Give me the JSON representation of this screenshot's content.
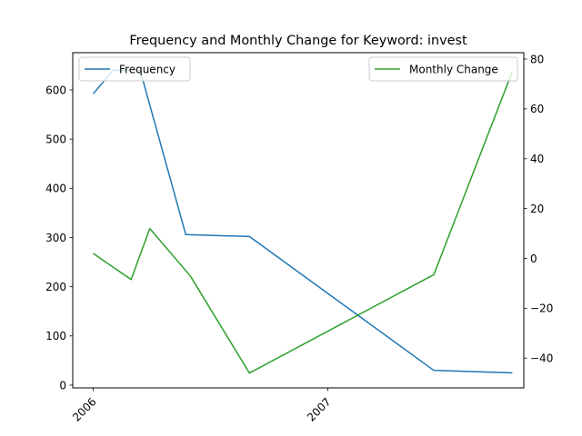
{
  "chart_data": {
    "type": "line",
    "title": "Frequency and Monthly Change for Keyword: invest",
    "x_ticks": [
      "2006",
      "2007"
    ],
    "y_left": {
      "ylim": [
        0,
        660
      ],
      "ticks": [
        0,
        100,
        200,
        300,
        400,
        500,
        600
      ]
    },
    "y_right": {
      "ylim": [
        -50,
        82
      ],
      "ticks": [
        -40,
        -20,
        0,
        20,
        40,
        60,
        80
      ]
    },
    "series": [
      {
        "name": "Frequency",
        "axis": "left",
        "color": "#1f77b4",
        "legend_position": "upper-left",
        "x": [
          "2006-01-01",
          "2006-02-01",
          "2006-03-15",
          "2006-05-25",
          "2006-09-01",
          "2007-06-15",
          "2007-10-15"
        ],
        "y": [
          592,
          640,
          640,
          306,
          302,
          30,
          25
        ]
      },
      {
        "name": "Monthly Change",
        "axis": "right",
        "color": "#2ca02c",
        "legend_position": "upper-right",
        "x": [
          "2006-01-01",
          "2006-03-01",
          "2006-03-30",
          "2006-06-01",
          "2006-09-01",
          "2007-06-15",
          "2007-10-15"
        ],
        "y": [
          2,
          -8.5,
          12,
          -7,
          -46,
          -6.5,
          75
        ]
      }
    ],
    "grid": false
  }
}
